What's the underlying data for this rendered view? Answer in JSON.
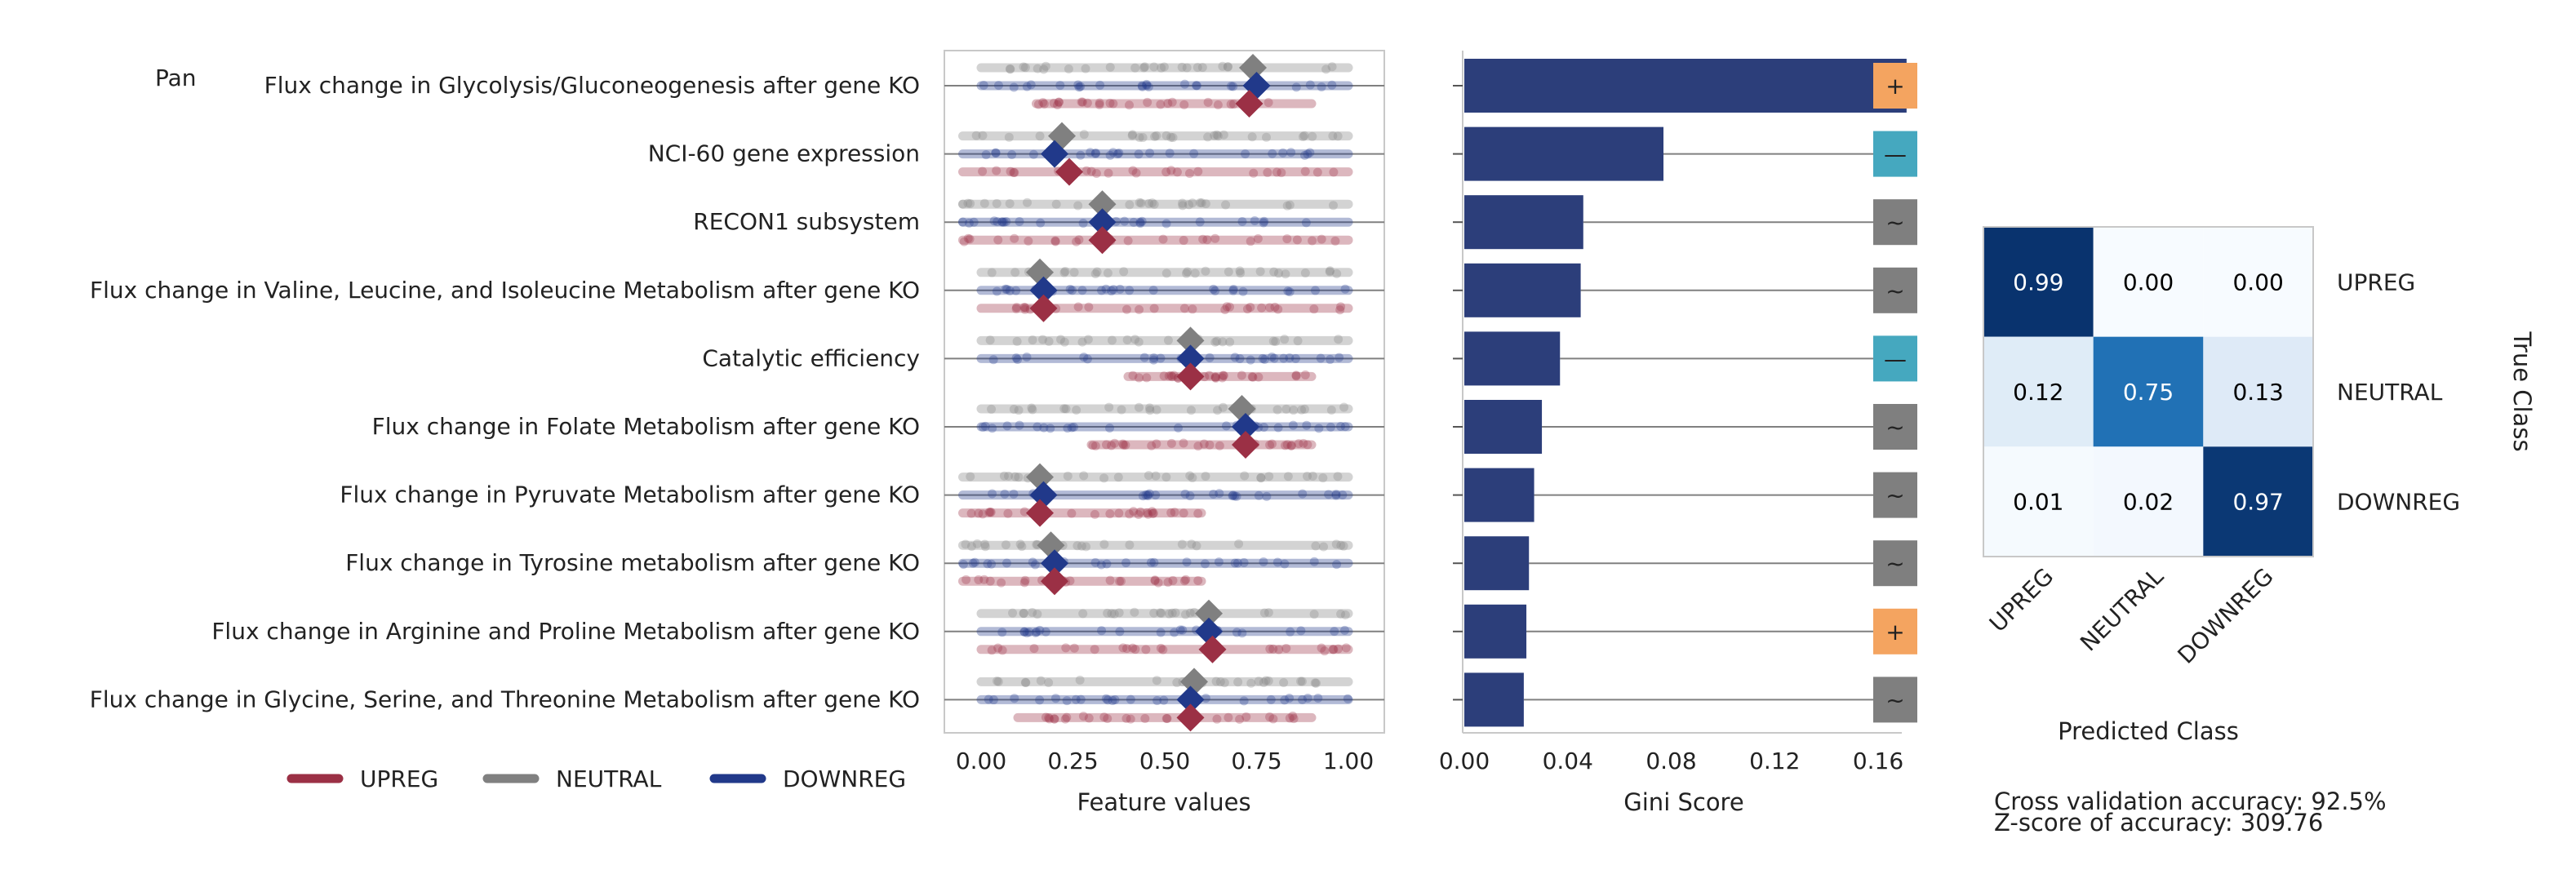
{
  "panel_label": "Pan",
  "chart_data": [
    {
      "type": "scatter",
      "subtype": "strip-plot",
      "xlabel": "Feature values",
      "xlim": [
        -0.1,
        1.1
      ],
      "xticks": [
        "0.00",
        "0.25",
        "0.50",
        "0.75",
        "1.00"
      ],
      "xtick_values": [
        0,
        0.25,
        0.5,
        0.75,
        1.0
      ],
      "grid": false,
      "categories": [
        "Flux change in Glycolysis/Gluconeogenesis after gene KO",
        "NCI-60 gene expression",
        "RECON1 subsystem",
        "Flux change in Valine, Leucine, and Isoleucine Metabolism after gene KO",
        "Catalytic efficiency",
        "Flux change in Folate Metabolism after gene KO",
        "Flux change in Pyruvate Metabolism after gene KO",
        "Flux change in Tyrosine metabolism after gene KO",
        "Flux change in Arginine and Proline Metabolism after gene KO",
        "Flux change in Glycine, Serine, and Threonine Metabolism after gene KO"
      ],
      "series": [
        {
          "name": "UPREG",
          "color": "#9b3045",
          "ranges": [
            [
              0.15,
              0.9
            ],
            [
              -0.05,
              1.0
            ],
            [
              -0.05,
              1.0
            ],
            [
              0.0,
              1.0
            ],
            [
              0.4,
              0.9
            ],
            [
              0.3,
              0.9
            ],
            [
              -0.05,
              0.6
            ],
            [
              -0.05,
              0.6
            ],
            [
              0.0,
              1.0
            ],
            [
              0.1,
              0.9
            ]
          ],
          "means": [
            0.73,
            0.24,
            0.33,
            0.17,
            0.57,
            0.72,
            0.16,
            0.2,
            0.63,
            0.57
          ]
        },
        {
          "name": "NEUTRAL",
          "color": "#808080",
          "ranges": [
            [
              0.0,
              1.0
            ],
            [
              -0.05,
              1.0
            ],
            [
              -0.05,
              1.0
            ],
            [
              0.0,
              1.0
            ],
            [
              0.0,
              1.0
            ],
            [
              0.0,
              1.0
            ],
            [
              -0.05,
              1.0
            ],
            [
              -0.05,
              1.0
            ],
            [
              0.0,
              1.0
            ],
            [
              0.0,
              1.0
            ]
          ],
          "means": [
            0.74,
            0.22,
            0.33,
            0.16,
            0.57,
            0.71,
            0.16,
            0.19,
            0.62,
            0.58
          ]
        },
        {
          "name": "DOWNREG",
          "color": "#21398a",
          "ranges": [
            [
              0.0,
              1.0
            ],
            [
              -0.05,
              1.0
            ],
            [
              -0.05,
              1.0
            ],
            [
              0.0,
              1.0
            ],
            [
              0.0,
              1.0
            ],
            [
              0.0,
              1.0
            ],
            [
              -0.05,
              1.0
            ],
            [
              -0.05,
              1.0
            ],
            [
              0.0,
              1.0
            ],
            [
              0.0,
              1.0
            ]
          ],
          "means": [
            0.75,
            0.2,
            0.33,
            0.17,
            0.57,
            0.72,
            0.17,
            0.2,
            0.62,
            0.57
          ]
        }
      ],
      "legend": {
        "placement": "bottom",
        "entries": [
          "UPREG",
          "NEUTRAL",
          "DOWNREG"
        ]
      }
    },
    {
      "type": "bar",
      "orientation": "horizontal",
      "xlabel": "Gini Score",
      "xlim": [
        0,
        0.18
      ],
      "xticks": [
        "0.00",
        "0.04",
        "0.08",
        "0.12",
        "0.16"
      ],
      "xtick_values": [
        0,
        0.04,
        0.08,
        0.12,
        0.16
      ],
      "bar_color": "#2c3e7a",
      "values": [
        0.171,
        0.077,
        0.046,
        0.045,
        0.037,
        0.03,
        0.027,
        0.025,
        0.024,
        0.023
      ],
      "direction_markers": [
        "+",
        "—",
        "~",
        "~",
        "—",
        "~",
        "~",
        "~",
        "+",
        "~"
      ],
      "marker_colors": {
        "+": "#f4a460",
        "—": "#45a8bf",
        "~": "#7f7f7f"
      }
    },
    {
      "type": "heatmap",
      "xlabel": "Predicted Class",
      "ylabel": "True Class",
      "x_categories": [
        "UPREG",
        "NEUTRAL",
        "DOWNREG"
      ],
      "y_categories": [
        "UPREG",
        "NEUTRAL",
        "DOWNREG"
      ],
      "cells": [
        [
          "0.99",
          "0.00",
          "0.00"
        ],
        [
          "0.12",
          "0.75",
          "0.13"
        ],
        [
          "0.01",
          "0.02",
          "0.97"
        ]
      ],
      "values": [
        [
          0.99,
          0.0,
          0.0
        ],
        [
          0.12,
          0.75,
          0.13
        ],
        [
          0.01,
          0.02,
          0.97
        ]
      ],
      "colormap": "Blues"
    }
  ],
  "notes": {
    "cv_accuracy": "Cross validation accuracy: 92.5%",
    "z_score": "Z-score of accuracy: 309.76"
  }
}
